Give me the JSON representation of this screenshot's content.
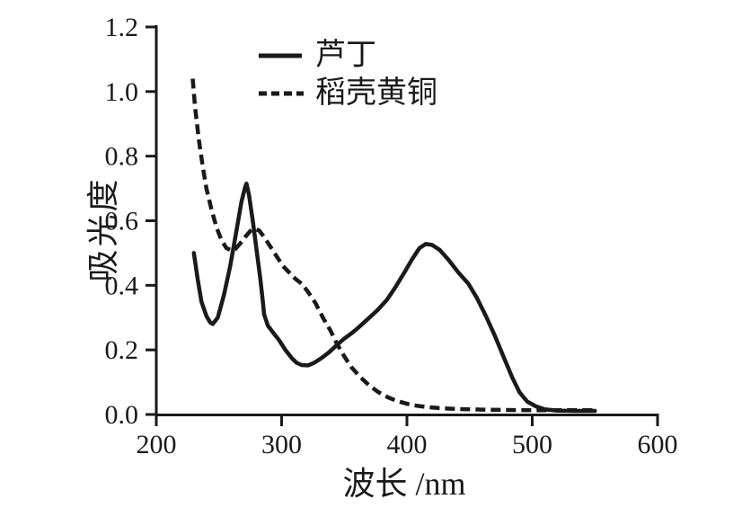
{
  "chart_data": {
    "type": "line",
    "title": "",
    "xlabel": "波长 /nm",
    "ylabel": "吸光度",
    "xlim": [
      200,
      600
    ],
    "ylim": [
      0,
      1.2
    ],
    "x_tick_labels": [
      "200",
      "300",
      "400",
      "500",
      "600"
    ],
    "y_tick_labels": [
      "0.0",
      "0.2",
      "0.4",
      "0.6",
      "0.8",
      "1.0",
      "1.2"
    ],
    "grid": false,
    "legend_position": "inside-top-left",
    "line_color": "#1a1a1a",
    "series": [
      {
        "name": "芦丁",
        "style": "solid",
        "color": "#1a1a1a",
        "points": [
          [
            230,
            0.5
          ],
          [
            233,
            0.42
          ],
          [
            236,
            0.35
          ],
          [
            240,
            0.305
          ],
          [
            243,
            0.285
          ],
          [
            245,
            0.28
          ],
          [
            249,
            0.3
          ],
          [
            254,
            0.37
          ],
          [
            259,
            0.46
          ],
          [
            264,
            0.57
          ],
          [
            268,
            0.66
          ],
          [
            271,
            0.705
          ],
          [
            272,
            0.715
          ],
          [
            274,
            0.68
          ],
          [
            277,
            0.6
          ],
          [
            280,
            0.51
          ],
          [
            283,
            0.42
          ],
          [
            285,
            0.35
          ],
          [
            286,
            0.31
          ],
          [
            289,
            0.275
          ],
          [
            294,
            0.25
          ],
          [
            298,
            0.23
          ],
          [
            303,
            0.2
          ],
          [
            308,
            0.175
          ],
          [
            312,
            0.16
          ],
          [
            316,
            0.153
          ],
          [
            321,
            0.152
          ],
          [
            326,
            0.16
          ],
          [
            332,
            0.175
          ],
          [
            338,
            0.193
          ],
          [
            344,
            0.215
          ],
          [
            350,
            0.235
          ],
          [
            357,
            0.255
          ],
          [
            363,
            0.275
          ],
          [
            370,
            0.3
          ],
          [
            377,
            0.325
          ],
          [
            384,
            0.355
          ],
          [
            391,
            0.395
          ],
          [
            398,
            0.44
          ],
          [
            404,
            0.48
          ],
          [
            410,
            0.515
          ],
          [
            415,
            0.528
          ],
          [
            420,
            0.525
          ],
          [
            426,
            0.51
          ],
          [
            433,
            0.48
          ],
          [
            441,
            0.44
          ],
          [
            449,
            0.405
          ],
          [
            456,
            0.36
          ],
          [
            463,
            0.305
          ],
          [
            470,
            0.245
          ],
          [
            477,
            0.18
          ],
          [
            484,
            0.115
          ],
          [
            490,
            0.068
          ],
          [
            496,
            0.04
          ],
          [
            503,
            0.025
          ],
          [
            510,
            0.016
          ],
          [
            520,
            0.012
          ],
          [
            535,
            0.011
          ],
          [
            550,
            0.011
          ]
        ]
      },
      {
        "name": "稻壳黄铜",
        "style": "dashed",
        "color": "#1a1a1a",
        "points": [
          [
            229,
            1.04
          ],
          [
            231,
            0.95
          ],
          [
            234,
            0.85
          ],
          [
            237,
            0.77
          ],
          [
            240,
            0.7
          ],
          [
            244,
            0.635
          ],
          [
            248,
            0.58
          ],
          [
            252,
            0.54
          ],
          [
            256,
            0.515
          ],
          [
            260,
            0.508
          ],
          [
            263,
            0.512
          ],
          [
            267,
            0.53
          ],
          [
            271,
            0.55
          ],
          [
            275,
            0.568
          ],
          [
            278,
            0.575
          ],
          [
            282,
            0.57
          ],
          [
            286,
            0.55
          ],
          [
            291,
            0.52
          ],
          [
            296,
            0.49
          ],
          [
            301,
            0.46
          ],
          [
            306,
            0.44
          ],
          [
            311,
            0.42
          ],
          [
            316,
            0.405
          ],
          [
            321,
            0.38
          ],
          [
            327,
            0.345
          ],
          [
            333,
            0.3
          ],
          [
            339,
            0.26
          ],
          [
            344,
            0.22
          ],
          [
            350,
            0.18
          ],
          [
            356,
            0.145
          ],
          [
            363,
            0.115
          ],
          [
            370,
            0.09
          ],
          [
            377,
            0.07
          ],
          [
            385,
            0.053
          ],
          [
            392,
            0.042
          ],
          [
            400,
            0.033
          ],
          [
            408,
            0.027
          ],
          [
            416,
            0.023
          ],
          [
            425,
            0.02
          ],
          [
            440,
            0.017
          ],
          [
            460,
            0.015
          ],
          [
            480,
            0.014
          ],
          [
            505,
            0.013
          ],
          [
            530,
            0.013
          ],
          [
            550,
            0.013
          ]
        ]
      }
    ]
  },
  "colors": {
    "background": "#ffffff",
    "line": "#1a1a1a"
  }
}
